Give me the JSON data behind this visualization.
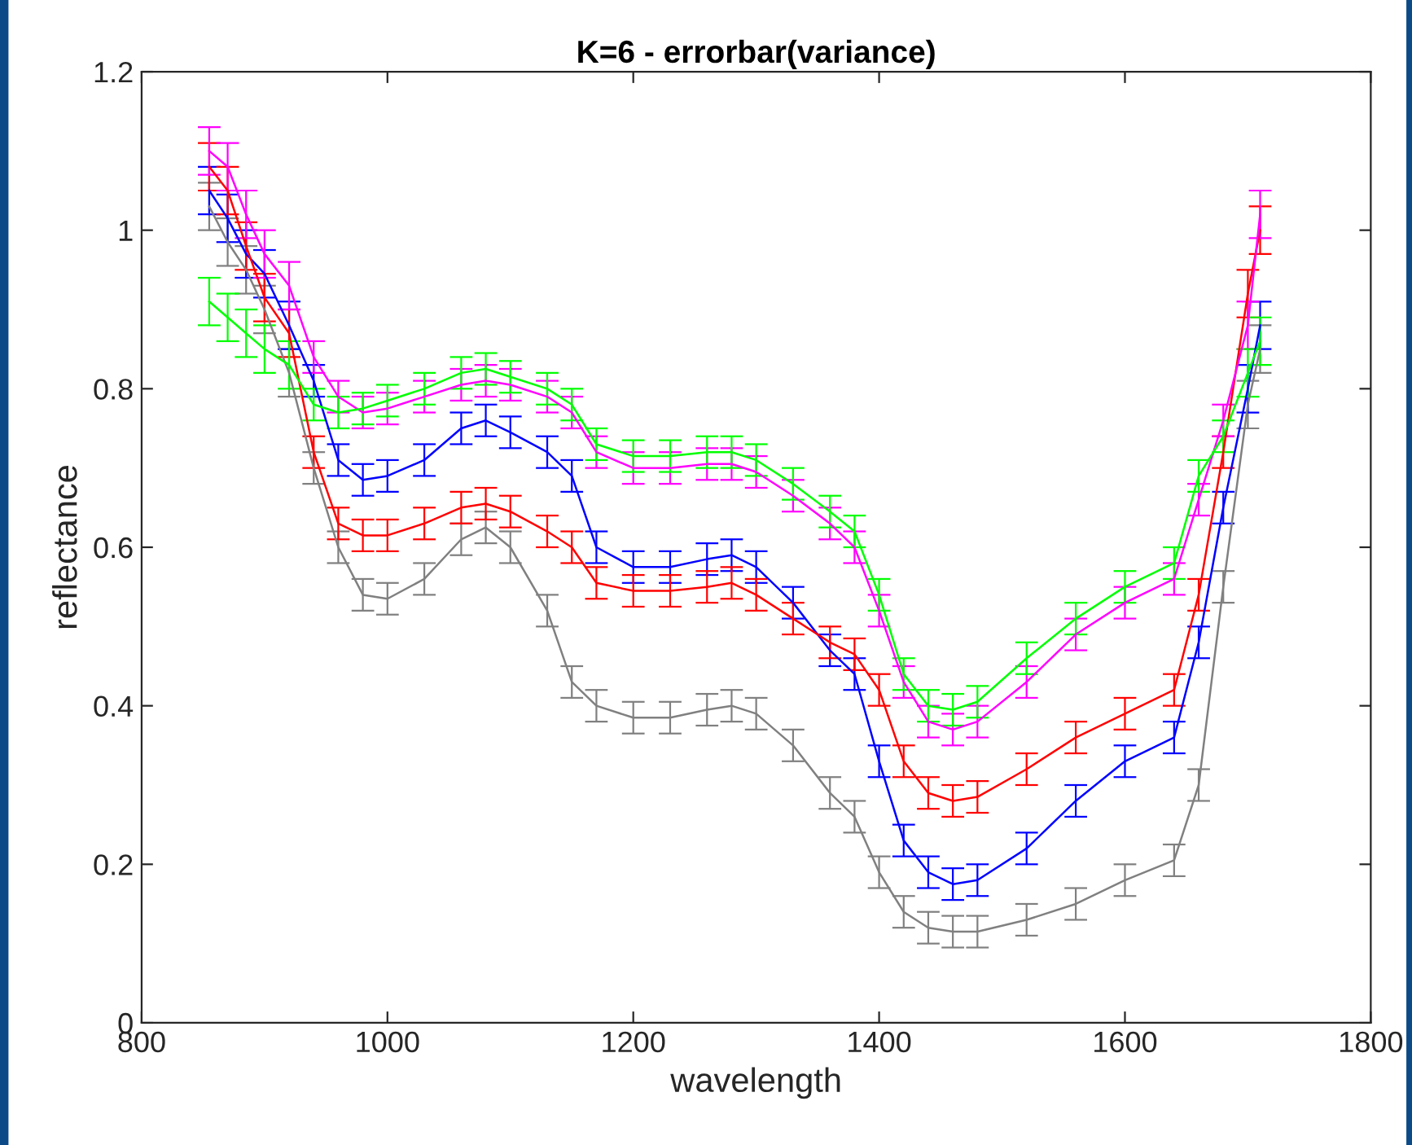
{
  "chart_data": {
    "type": "line",
    "title": "K=6 - errorbar(variance)",
    "xlabel": "wavelength",
    "ylabel": "reflectance",
    "x": [
      855,
      870,
      885,
      900,
      920,
      940,
      960,
      980,
      1000,
      1030,
      1060,
      1080,
      1100,
      1130,
      1150,
      1170,
      1200,
      1230,
      1260,
      1280,
      1300,
      1330,
      1360,
      1380,
      1400,
      1420,
      1440,
      1460,
      1480,
      1520,
      1560,
      1600,
      1640,
      1660,
      1680,
      1700,
      1710
    ],
    "series": [
      {
        "color": "#808080",
        "values": [
          1.03,
          0.985,
          0.95,
          0.9,
          0.82,
          0.7,
          0.6,
          0.54,
          0.535,
          0.56,
          0.61,
          0.625,
          0.6,
          0.52,
          0.43,
          0.4,
          0.385,
          0.385,
          0.395,
          0.4,
          0.39,
          0.35,
          0.29,
          0.26,
          0.19,
          0.14,
          0.12,
          0.115,
          0.115,
          0.13,
          0.15,
          0.18,
          0.205,
          0.3,
          0.55,
          0.78,
          0.85
        ],
        "errors": [
          0.03,
          0.03,
          0.03,
          0.03,
          0.03,
          0.02,
          0.02,
          0.02,
          0.02,
          0.02,
          0.02,
          0.02,
          0.02,
          0.02,
          0.02,
          0.02,
          0.02,
          0.02,
          0.02,
          0.02,
          0.02,
          0.02,
          0.02,
          0.02,
          0.02,
          0.02,
          0.02,
          0.02,
          0.02,
          0.02,
          0.02,
          0.02,
          0.02,
          0.02,
          0.02,
          0.03,
          0.03
        ]
      },
      {
        "color": "#0000ff",
        "values": [
          1.05,
          1.015,
          0.97,
          0.945,
          0.88,
          0.81,
          0.71,
          0.685,
          0.69,
          0.71,
          0.75,
          0.76,
          0.745,
          0.72,
          0.69,
          0.6,
          0.575,
          0.575,
          0.585,
          0.59,
          0.575,
          0.53,
          0.47,
          0.44,
          0.33,
          0.23,
          0.19,
          0.175,
          0.18,
          0.22,
          0.28,
          0.33,
          0.36,
          0.48,
          0.65,
          0.8,
          0.88
        ],
        "errors": [
          0.03,
          0.03,
          0.03,
          0.03,
          0.03,
          0.02,
          0.02,
          0.02,
          0.02,
          0.02,
          0.02,
          0.02,
          0.02,
          0.02,
          0.02,
          0.02,
          0.02,
          0.02,
          0.02,
          0.02,
          0.02,
          0.02,
          0.02,
          0.02,
          0.02,
          0.02,
          0.02,
          0.02,
          0.02,
          0.02,
          0.02,
          0.02,
          0.02,
          0.02,
          0.02,
          0.03,
          0.03
        ]
      },
      {
        "color": "#ff0000",
        "values": [
          1.08,
          1.05,
          0.98,
          0.915,
          0.87,
          0.72,
          0.63,
          0.615,
          0.615,
          0.63,
          0.65,
          0.655,
          0.645,
          0.62,
          0.6,
          0.555,
          0.545,
          0.545,
          0.55,
          0.555,
          0.54,
          0.51,
          0.48,
          0.465,
          0.42,
          0.33,
          0.29,
          0.28,
          0.285,
          0.32,
          0.36,
          0.39,
          0.42,
          0.54,
          0.72,
          0.92,
          1.0
        ],
        "errors": [
          0.03,
          0.03,
          0.03,
          0.03,
          0.03,
          0.02,
          0.02,
          0.02,
          0.02,
          0.02,
          0.02,
          0.02,
          0.02,
          0.02,
          0.02,
          0.02,
          0.02,
          0.02,
          0.02,
          0.02,
          0.02,
          0.02,
          0.02,
          0.02,
          0.02,
          0.02,
          0.02,
          0.02,
          0.02,
          0.02,
          0.02,
          0.02,
          0.02,
          0.02,
          0.02,
          0.03,
          0.03
        ]
      },
      {
        "color": "#ff00ff",
        "values": [
          1.1,
          1.08,
          1.02,
          0.97,
          0.93,
          0.84,
          0.79,
          0.77,
          0.775,
          0.79,
          0.805,
          0.81,
          0.805,
          0.79,
          0.77,
          0.72,
          0.7,
          0.7,
          0.705,
          0.705,
          0.695,
          0.665,
          0.63,
          0.6,
          0.52,
          0.43,
          0.38,
          0.37,
          0.38,
          0.43,
          0.49,
          0.53,
          0.56,
          0.66,
          0.76,
          0.88,
          1.02
        ],
        "errors": [
          0.03,
          0.03,
          0.03,
          0.03,
          0.03,
          0.02,
          0.02,
          0.02,
          0.02,
          0.02,
          0.02,
          0.02,
          0.02,
          0.02,
          0.02,
          0.02,
          0.02,
          0.02,
          0.02,
          0.02,
          0.02,
          0.02,
          0.02,
          0.02,
          0.02,
          0.02,
          0.02,
          0.02,
          0.02,
          0.02,
          0.02,
          0.02,
          0.02,
          0.02,
          0.02,
          0.03,
          0.03
        ]
      },
      {
        "color": "#00ff00",
        "values": [
          0.91,
          0.89,
          0.87,
          0.85,
          0.83,
          0.78,
          0.77,
          0.775,
          0.785,
          0.8,
          0.82,
          0.825,
          0.815,
          0.8,
          0.78,
          0.73,
          0.715,
          0.715,
          0.72,
          0.72,
          0.71,
          0.68,
          0.645,
          0.62,
          0.54,
          0.44,
          0.4,
          0.395,
          0.405,
          0.46,
          0.51,
          0.55,
          0.58,
          0.69,
          0.74,
          0.82,
          0.86
        ],
        "errors": [
          0.03,
          0.03,
          0.03,
          0.03,
          0.03,
          0.02,
          0.02,
          0.02,
          0.02,
          0.02,
          0.02,
          0.02,
          0.02,
          0.02,
          0.02,
          0.02,
          0.02,
          0.02,
          0.02,
          0.02,
          0.02,
          0.02,
          0.02,
          0.02,
          0.02,
          0.02,
          0.02,
          0.02,
          0.02,
          0.02,
          0.02,
          0.02,
          0.02,
          0.02,
          0.02,
          0.03,
          0.03
        ]
      }
    ],
    "xlim": [
      800,
      1800
    ],
    "xticks": [
      800,
      1000,
      1200,
      1400,
      1600,
      1800
    ],
    "ylim": [
      0,
      1.2
    ],
    "yticks": [
      0,
      0.2,
      0.4,
      0.6,
      0.8,
      1,
      1.2
    ],
    "grid": false,
    "legend": false,
    "marker": "none",
    "line_style": "solid"
  }
}
